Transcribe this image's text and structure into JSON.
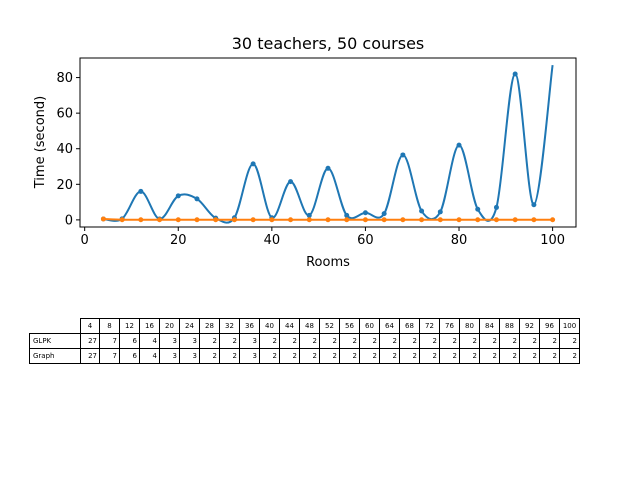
{
  "chart_data": {
    "type": "line",
    "title": "30 teachers, 50 courses",
    "xlabel": "Rooms",
    "ylabel": "Time (second)",
    "xlim": [
      -1,
      105
    ],
    "ylim": [
      -4,
      91
    ],
    "xticks": [
      0,
      20,
      40,
      60,
      80,
      100
    ],
    "yticks": [
      0,
      20,
      40,
      60,
      80
    ],
    "grid": false,
    "series": [
      {
        "color": "#1f77b4",
        "x": [
          4,
          8,
          12,
          16,
          20,
          24,
          28,
          32,
          36,
          40,
          44,
          48,
          52,
          56,
          60,
          64,
          68,
          72,
          76,
          80,
          84,
          88,
          92,
          96,
          100
        ],
        "y": [
          0.5,
          0.6,
          16,
          0.5,
          13.5,
          11.8,
          1,
          1.2,
          31.5,
          1.2,
          21.5,
          2.5,
          29,
          2.5,
          4,
          3.5,
          36.5,
          5,
          4.5,
          42,
          6,
          7,
          82,
          8.5,
          87
        ]
      },
      {
        "color": "#ff7f0e",
        "x": [
          4,
          8,
          12,
          16,
          20,
          24,
          28,
          32,
          36,
          40,
          44,
          48,
          52,
          56,
          60,
          64,
          68,
          72,
          76,
          80,
          84,
          88,
          92,
          96,
          100
        ],
        "y": [
          0.5,
          0.1,
          0.1,
          0.1,
          0.1,
          0.1,
          0.1,
          0.1,
          0.1,
          0.1,
          0.1,
          0.1,
          0.1,
          0.1,
          0.1,
          0.1,
          0.1,
          0.1,
          0.1,
          0.1,
          0.1,
          0.1,
          0.1,
          0.1,
          0.1
        ]
      }
    ],
    "table": {
      "columns": [
        "4",
        "8",
        "12",
        "16",
        "20",
        "24",
        "28",
        "32",
        "36",
        "40",
        "44",
        "48",
        "52",
        "56",
        "60",
        "64",
        "68",
        "72",
        "76",
        "80",
        "84",
        "88",
        "92",
        "96",
        "100"
      ],
      "rows": [
        {
          "label": "GLPK",
          "values": [
            "27",
            "7",
            "6",
            "4",
            "3",
            "3",
            "2",
            "2",
            "3",
            "2",
            "2",
            "2",
            "2",
            "2",
            "2",
            "2",
            "2",
            "2",
            "2",
            "2",
            "2",
            "2",
            "2",
            "2",
            "2"
          ]
        },
        {
          "label": "Graph",
          "values": [
            "27",
            "7",
            "6",
            "4",
            "3",
            "3",
            "2",
            "2",
            "3",
            "2",
            "2",
            "2",
            "2",
            "2",
            "2",
            "2",
            "2",
            "2",
            "2",
            "2",
            "2",
            "2",
            "2",
            "2",
            "2"
          ]
        }
      ]
    }
  }
}
